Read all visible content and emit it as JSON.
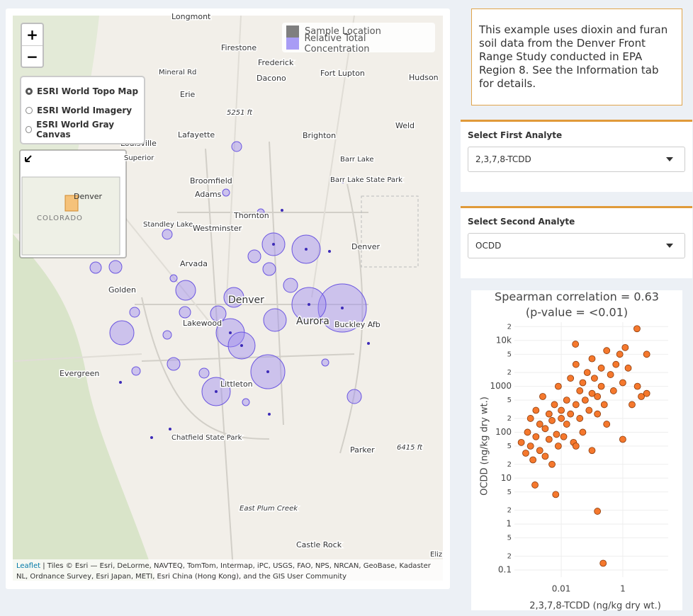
{
  "map": {
    "zoom_in": "+",
    "zoom_out": "−",
    "legend": [
      "Sample Location",
      "Relative Total Concentration"
    ],
    "basemaps": [
      "ESRI World Topo Map",
      "ESRI World Imagery",
      "ESRI World Gray Canvas"
    ],
    "minimap": [
      "Denver",
      "COLORADO"
    ],
    "places": [
      "Longmont",
      "Firestone",
      "Frederick",
      "Mineral Rd",
      "Dacono",
      "Fort Lupton",
      "Hudson",
      "Erie",
      "5251 ft",
      "Weld",
      "Lafayette",
      "Brighton",
      "Louisville",
      "Superior",
      "Barr Lake",
      "Barr Lake State Park",
      "Broomfield",
      "Adams",
      "Thornton",
      "Standley Lake",
      "Westminster",
      "Denver",
      "Arvada",
      "Golden",
      "Denver",
      "Lakewood",
      "Aurora",
      "Buckley Afb",
      "Evergreen",
      "Littleton",
      "Chatfield State Park",
      "Parker",
      "6415 ft",
      "East Plum Creek",
      "Castle Rock",
      "Eliz"
    ],
    "attribution_link": "Leaflet",
    "attribution": "| Tiles © Esri — Esri, DeLorme, NAVTEQ, TomTom, Intermap, iPC, USGS, FAO, NPS, NRCAN, GeoBase, Kadaster NL, Ordnance Survey, Esri Japan, METI, Esri China (Hong Kong), and the GIS User Community"
  },
  "info": "This example uses dioxin and furan soil data from the Denver Front Range Study conducted in EPA Region 8. See the Information tab for details.",
  "selects": [
    {
      "label": "Select First Analyte",
      "value": "2,3,7,8-TCDD"
    },
    {
      "label": "Select Second Analyte",
      "value": "OCDD"
    }
  ],
  "chart_data": {
    "type": "scatter",
    "title": "Spearman correlation = 0.63",
    "subtitle": "(p-value = <0.01)",
    "x_label": "2,3,7,8-TCDD (ng/kg dry wt.)",
    "y_label": "OCDD (ng/kg dry wt.)",
    "log_x": true,
    "log_y": true,
    "grid": true,
    "color": "#f5782d",
    "x": [
      0.0005,
      0.0007,
      0.0008,
      0.001,
      0.001,
      0.0012,
      0.0015,
      0.0015,
      0.002,
      0.002,
      0.0025,
      0.003,
      0.003,
      0.004,
      0.004,
      0.005,
      0.005,
      0.006,
      0.007,
      0.008,
      0.008,
      0.01,
      0.01,
      0.012,
      0.015,
      0.015,
      0.02,
      0.02,
      0.025,
      0.03,
      0.03,
      0.04,
      0.04,
      0.05,
      0.05,
      0.06,
      0.07,
      0.08,
      0.1,
      0.1,
      0.12,
      0.15,
      0.15,
      0.2,
      0.2,
      0.25,
      0.3,
      0.3,
      0.4,
      0.5,
      0.6,
      0.8,
      1,
      1,
      1.2,
      1.5,
      2,
      3,
      4,
      6,
      6,
      2.9,
      0.029,
      0.23,
      0.15,
      0.0066,
      0.0014,
      0.1,
      0.03
    ],
    "values": [
      60,
      35,
      100,
      200,
      50,
      25,
      300,
      80,
      150,
      40,
      600,
      30,
      120,
      250,
      70,
      20,
      180,
      400,
      90,
      50,
      1000,
      200,
      300,
      80,
      500,
      150,
      1500,
      250,
      60,
      400,
      3000,
      800,
      200,
      1200,
      100,
      500,
      2000,
      300,
      700,
      4000,
      1500,
      250,
      600,
      1000,
      2500,
      400,
      6000,
      150,
      1800,
      800,
      3000,
      5000,
      1200,
      70,
      7000,
      2500,
      400,
      1000,
      600,
      5000,
      700,
      18000,
      8300,
      0.14,
      1.9,
      4.4,
      7.1,
      40,
      50
    ],
    "xlim": [
      0.0003,
      30
    ],
    "xticks": [
      0.01,
      1
    ],
    "ylim": [
      0.07,
      25000
    ],
    "yticks": [
      0.1,
      {
        "value": 0.2,
        "label": "2"
      },
      {
        "value": 0.5,
        "label": "5"
      },
      1,
      {
        "value": 2,
        "label": "2"
      },
      {
        "value": 5,
        "label": "5"
      },
      10,
      {
        "value": 20,
        "label": "2"
      },
      {
        "value": 50,
        "label": "5"
      },
      100,
      {
        "value": 200,
        "label": "2"
      },
      {
        "value": 500,
        "label": "5"
      },
      1000,
      {
        "value": 2000,
        "label": "2"
      },
      {
        "value": 5000,
        "label": "5"
      },
      {
        "value": 10000,
        "label": "10k"
      },
      {
        "value": 20000,
        "label": "2"
      }
    ]
  }
}
